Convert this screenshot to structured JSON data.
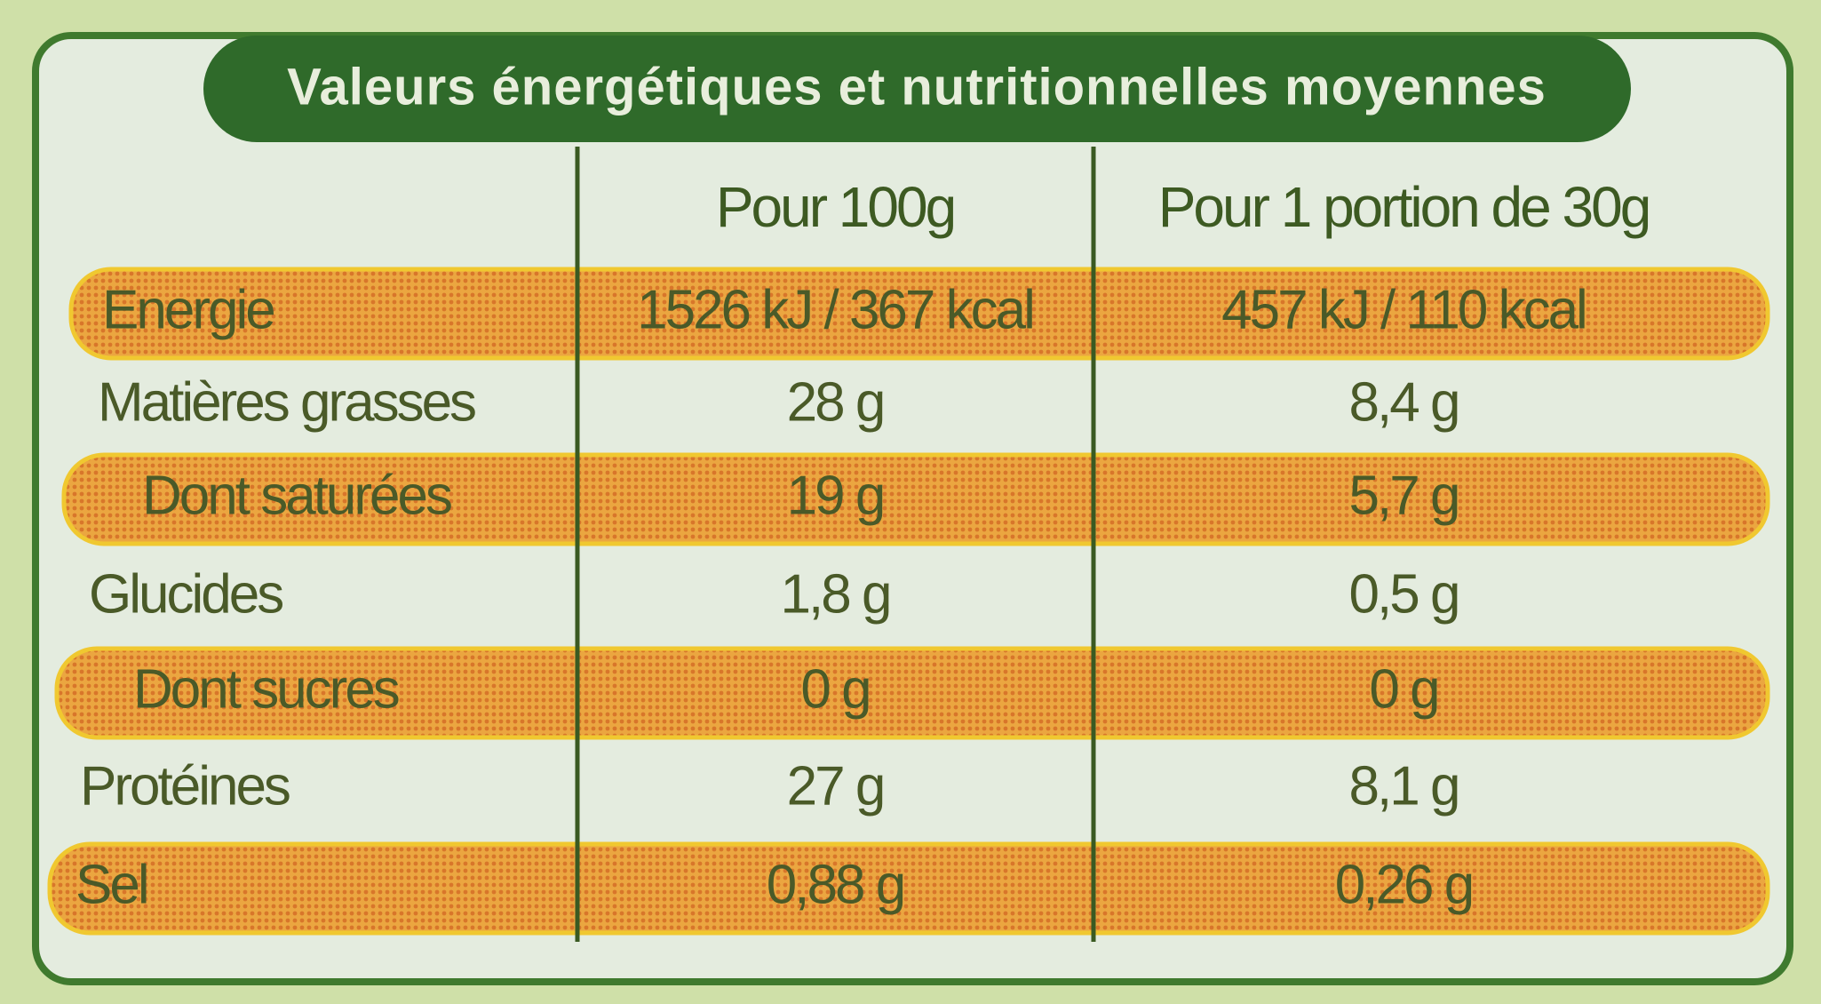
{
  "title": "Valeurs énergétiques et nutritionnelles moyennes",
  "table": {
    "header": [
      "Pour 100g",
      "Pour 1 portion de 30g"
    ],
    "rows": [
      [
        "Energie",
        "1526 kJ / 367 kcal",
        "457 kJ / 110 kcal"
      ],
      [
        "Matières grasses",
        "28 g",
        "8,4 g"
      ],
      [
        "Dont saturées",
        "19 g",
        "5,7 g"
      ],
      [
        "Glucides",
        "1,8 g",
        "0,5 g"
      ],
      [
        "Dont sucres",
        "0 g",
        "0 g"
      ],
      [
        "Protéines",
        "27 g",
        "8,1 g"
      ],
      [
        "Sel",
        "0,88 g",
        "0,26 g"
      ]
    ]
  }
}
